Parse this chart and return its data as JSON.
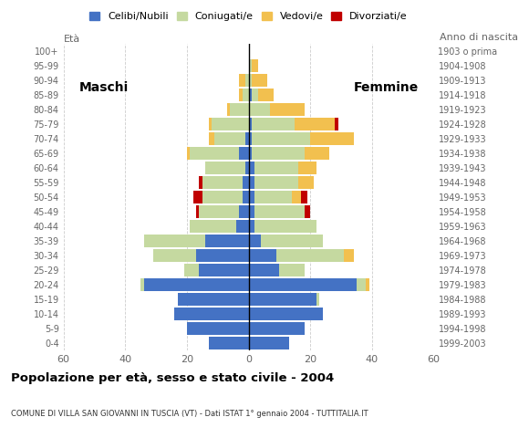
{
  "age_groups": [
    "0-4",
    "5-9",
    "10-14",
    "15-19",
    "20-24",
    "25-29",
    "30-34",
    "35-39",
    "40-44",
    "45-49",
    "50-54",
    "55-59",
    "60-64",
    "65-69",
    "70-74",
    "75-79",
    "80-84",
    "85-89",
    "90-94",
    "95-99",
    "100+"
  ],
  "birth_years": [
    "1999-2003",
    "1994-1998",
    "1989-1993",
    "1984-1988",
    "1979-1983",
    "1974-1978",
    "1969-1973",
    "1964-1968",
    "1959-1963",
    "1954-1958",
    "1949-1953",
    "1944-1948",
    "1939-1943",
    "1934-1938",
    "1929-1933",
    "1924-1928",
    "1919-1923",
    "1914-1918",
    "1909-1913",
    "1904-1908",
    "1903 o prima"
  ],
  "males": {
    "celibe": [
      13,
      20,
      24,
      23,
      34,
      16,
      17,
      14,
      4,
      3,
      2,
      2,
      1,
      3,
      1,
      0,
      0,
      0,
      0,
      0,
      0
    ],
    "coniugato": [
      0,
      0,
      0,
      0,
      1,
      5,
      14,
      20,
      15,
      13,
      13,
      13,
      13,
      16,
      10,
      12,
      6,
      2,
      1,
      0,
      0
    ],
    "vedovo": [
      0,
      0,
      0,
      0,
      0,
      0,
      0,
      0,
      0,
      0,
      0,
      0,
      0,
      1,
      2,
      1,
      1,
      1,
      2,
      0,
      0
    ],
    "divorziato": [
      0,
      0,
      0,
      0,
      0,
      0,
      0,
      0,
      0,
      1,
      3,
      1,
      0,
      0,
      0,
      0,
      0,
      0,
      0,
      0,
      0
    ]
  },
  "females": {
    "nubile": [
      13,
      18,
      24,
      22,
      35,
      10,
      9,
      4,
      2,
      2,
      2,
      2,
      2,
      1,
      1,
      1,
      0,
      1,
      0,
      0,
      0
    ],
    "coniugata": [
      0,
      0,
      0,
      1,
      3,
      8,
      22,
      20,
      20,
      16,
      12,
      14,
      14,
      17,
      19,
      14,
      7,
      2,
      1,
      1,
      0
    ],
    "vedova": [
      0,
      0,
      0,
      0,
      1,
      0,
      3,
      0,
      0,
      0,
      3,
      5,
      6,
      8,
      14,
      13,
      11,
      5,
      5,
      2,
      0
    ],
    "divorziata": [
      0,
      0,
      0,
      0,
      0,
      0,
      0,
      0,
      0,
      2,
      2,
      0,
      0,
      0,
      0,
      1,
      0,
      0,
      0,
      0,
      0
    ]
  },
  "colors": {
    "celibe": "#4472c4",
    "coniugato": "#c5d9a0",
    "vedovo": "#f2c04f",
    "divorziato": "#c00000"
  },
  "xlim": 60,
  "title": "Popolazione per età, sesso e stato civile - 2004",
  "subtitle": "COMUNE DI VILLA SAN GIOVANNI IN TUSCIA (VT) - Dati ISTAT 1° gennaio 2004 - TUTTITALIA.IT",
  "legend_labels": [
    "Celibi/Nubili",
    "Coniugati/e",
    "Vedovi/e",
    "Divorziati/e"
  ],
  "maschi_label": "Maschi",
  "femmine_label": "Femmine",
  "eta_label": "Età",
  "anno_label": "Anno di nascita",
  "background_color": "#ffffff",
  "grid_color": "#cccccc",
  "tick_color": "#666666"
}
